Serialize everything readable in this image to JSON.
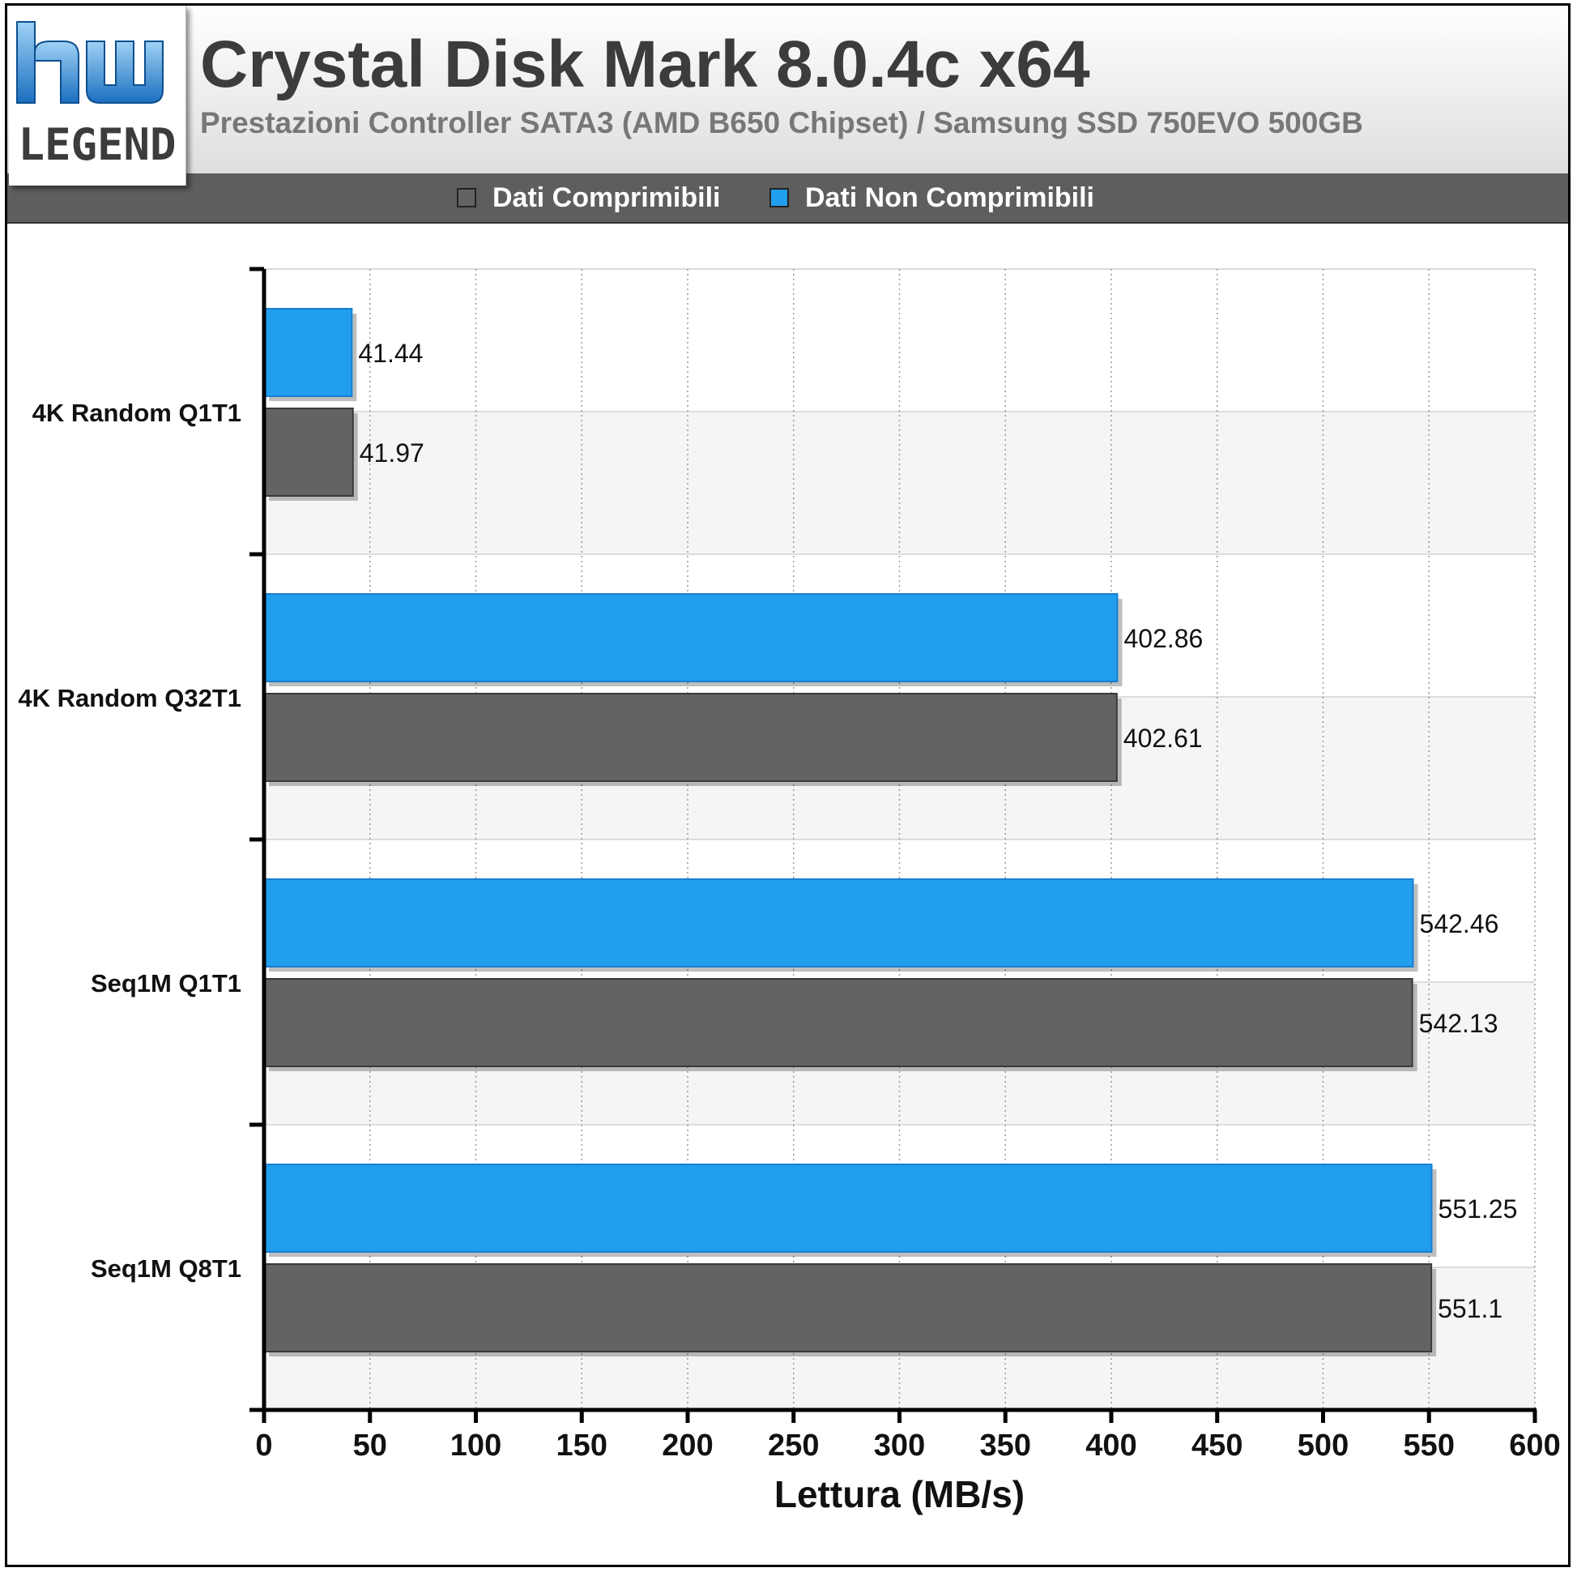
{
  "header": {
    "logo_text_top": "hw",
    "logo_text_bottom": "LEGEND",
    "title": "Crystal Disk Mark 8.0.4c x64",
    "subtitle": "Prestazioni Controller SATA3 (AMD B650 Chipset) / Samsung SSD 750EVO 500GB"
  },
  "legend": [
    {
      "label": "Dati Comprimibili",
      "color": "#636363"
    },
    {
      "label": "Dati Non Comprimibili",
      "color": "#219eee"
    }
  ],
  "chart_data": {
    "type": "bar",
    "orientation": "horizontal",
    "categories": [
      "4K Random Q1T1",
      "4K Random Q32T1",
      "Seq1M Q1T1",
      "Seq1M Q8T1"
    ],
    "series": [
      {
        "name": "Dati Non Comprimibili",
        "color": "#219eee",
        "values": [
          41.44,
          402.86,
          542.46,
          551.25
        ],
        "labels": [
          "41.44",
          "402.86",
          "542.46",
          "551.25"
        ]
      },
      {
        "name": "Dati Comprimibili",
        "color": "#636363",
        "values": [
          41.97,
          402.61,
          542.13,
          551.1
        ],
        "labels": [
          "41.97",
          "402.61",
          "542.13",
          "551.1"
        ]
      }
    ],
    "xlabel": "Lettura (MB/s)",
    "xlim": [
      0,
      600
    ],
    "xticks": [
      "0",
      "50",
      "100",
      "150",
      "200",
      "250",
      "300",
      "350",
      "400",
      "450",
      "500",
      "550",
      "600"
    ],
    "grid": true,
    "legend_position": "top"
  }
}
